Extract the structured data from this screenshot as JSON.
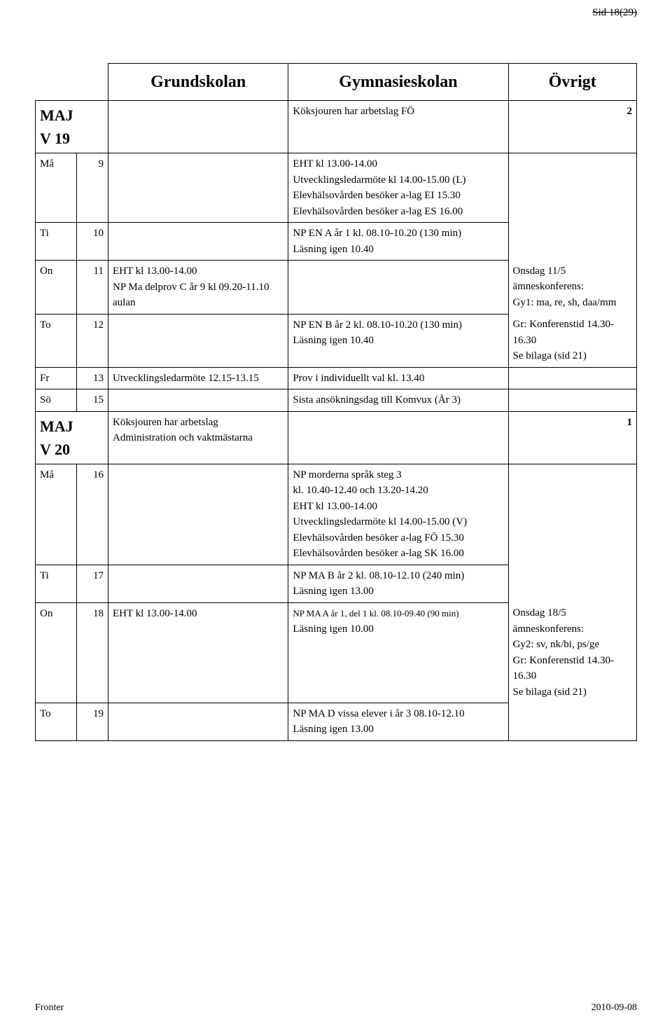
{
  "pageHeader": "Sid 18(29)",
  "headers": {
    "grundskolan": "Grundskolan",
    "gymnasieskolan": "Gymnasieskolan",
    "ovrigt": "Övrigt"
  },
  "week19": {
    "label1": "MAJ",
    "label2": "V 19",
    "koks": "Köksjouren har arbetslag FÖ",
    "zone": "2",
    "rows": {
      "ma": {
        "day": "Må",
        "num": "9",
        "gym": "EHT kl 13.00-14.00\nUtvecklingsledarmöte kl 14.00-15.00 (L)\nElevhälsovården besöker a-lag EI 15.30\nElevhälsovården besöker a-lag ES 16.00"
      },
      "ti": {
        "day": "Ti",
        "num": "10",
        "gym": "NP EN A år 1 kl. 08.10-10.20 (130 min)\nLäsning igen 10.40"
      },
      "on": {
        "day": "On",
        "num": "11",
        "grund": "EHT kl 13.00-14.00\nNP Ma delprov C år 9 kl 09.20-11.10 aulan",
        "ovr": "Onsdag 11/5\nämneskonferens:\nGy1: ma, re, sh, daa/mm"
      },
      "to": {
        "day": "To",
        "num": "12",
        "gym": "NP EN B år 2 kl. 08.10-10.20 (130 min)\nLäsning igen 10.40",
        "ovr": "Gr: Konferenstid 14.30-16.30\nSe bilaga (sid 21)"
      },
      "fr": {
        "day": "Fr",
        "num": "13",
        "grund": "Utvecklingsledarmöte 12.15-13.15",
        "gym": "Prov i individuellt val kl. 13.40"
      },
      "so": {
        "day": "Sö",
        "num": "15",
        "gym": "Sista ansökningsdag till Komvux (År 3)"
      }
    }
  },
  "week20": {
    "label1": "MAJ",
    "label2": "V 20",
    "koks": "Köksjouren har arbetslag\nAdministration och vaktmästarna",
    "zone": "1",
    "rows": {
      "ma": {
        "day": "Må",
        "num": "16",
        "gym": "NP morderna språk steg 3\nkl. 10.40-12.40 och 13.20-14.20\nEHT kl 13.00-14.00\nUtvecklingsledarmöte kl 14.00-15.00 (V)\nElevhälsovården besöker a-lag FÖ 15.30\nElevhälsovården besöker a-lag SK 16.00"
      },
      "ti": {
        "day": "Ti",
        "num": "17",
        "gym": "NP MA B år 2 kl. 08.10-12.10 (240 min)\nLäsning igen 13.00"
      },
      "on": {
        "day": "On",
        "num": "18",
        "grund": "EHT kl 13.00-14.00",
        "gymLine1": "NP MA A år 1, del 1 kl. 08.10-09.40 (90 min)",
        "gymLine2": "Läsning igen 10.00",
        "ovr": "Onsdag 18/5\nämneskonferens:\nGy2: sv, nk/bi, ps/ge\nGr: Konferenstid 14.30-16.30\nSe bilaga (sid 21)"
      },
      "to": {
        "day": "To",
        "num": "19",
        "gym": "NP MA D vissa elever i år 3 08.10-12.10\nLäsning igen 13.00"
      }
    }
  },
  "footer": {
    "left": "Fronter",
    "right": "2010-09-08"
  }
}
